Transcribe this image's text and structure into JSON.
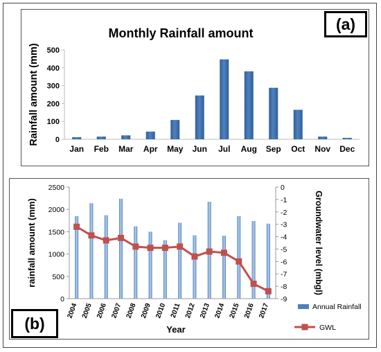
{
  "panel_a": {
    "label": "(a)",
    "title": "Monthly Rainfall amount",
    "ylabel": "Rainfall amount (mm)"
  },
  "panel_b": {
    "label": "(b)",
    "xlabel": "Year",
    "ylabel_left": "rainfall amount  (mm)",
    "ylabel_right": "Groundwater level (mbgl)",
    "legend": [
      "Annual Rainfall",
      "GWL"
    ]
  },
  "colors": {
    "bar": "#4f81bd",
    "bar_dark": "#2f5f9c",
    "gwl": "#c0504d"
  },
  "chart_data": [
    {
      "type": "bar",
      "title": "Monthly Rainfall amount",
      "xlabel": "",
      "ylabel": "Rainfall amount (mm)",
      "ylim": [
        0,
        500
      ],
      "yticks": [
        0,
        100,
        200,
        300,
        400,
        500
      ],
      "grid": false,
      "categories": [
        "Jan",
        "Feb",
        "Mar",
        "Apr",
        "May",
        "Jun",
        "Jul",
        "Aug",
        "Sep",
        "Oct",
        "Nov",
        "Dec"
      ],
      "values": [
        12,
        15,
        22,
        43,
        108,
        245,
        447,
        380,
        288,
        165,
        15,
        8
      ]
    },
    {
      "type": "bar",
      "xlabel": "Year",
      "ylabel": "rainfall amount  (mm)",
      "y2label": "Groundwater level (mbgl)",
      "ylim": [
        0,
        2500
      ],
      "y2lim": [
        -9,
        0
      ],
      "yticks": [
        0,
        500,
        1000,
        1500,
        2000,
        2500
      ],
      "y2ticks": [
        0,
        -1,
        -2,
        -3,
        -4,
        -5,
        -6,
        -7,
        -8,
        -9
      ],
      "legend_position": "bottom-right",
      "categories": [
        "2004",
        "2005",
        "2006",
        "2007",
        "2008",
        "2009",
        "2010",
        "2011",
        "2012",
        "2013",
        "2014",
        "2015",
        "2016",
        "2017"
      ],
      "series": [
        {
          "name": "Annual Rainfall",
          "type": "bar",
          "axis": "left",
          "values": [
            1850,
            2140,
            1870,
            2240,
            1620,
            1500,
            1310,
            1700,
            1420,
            2170,
            1410,
            1850,
            1740,
            1680
          ]
        },
        {
          "name": "GWL",
          "type": "line",
          "axis": "right",
          "values": [
            -3.2,
            -3.9,
            -4.3,
            -4.1,
            -4.8,
            -4.9,
            -4.9,
            -4.8,
            -5.6,
            -5.2,
            -5.3,
            -6.0,
            -7.8,
            -8.4
          ]
        }
      ]
    }
  ]
}
